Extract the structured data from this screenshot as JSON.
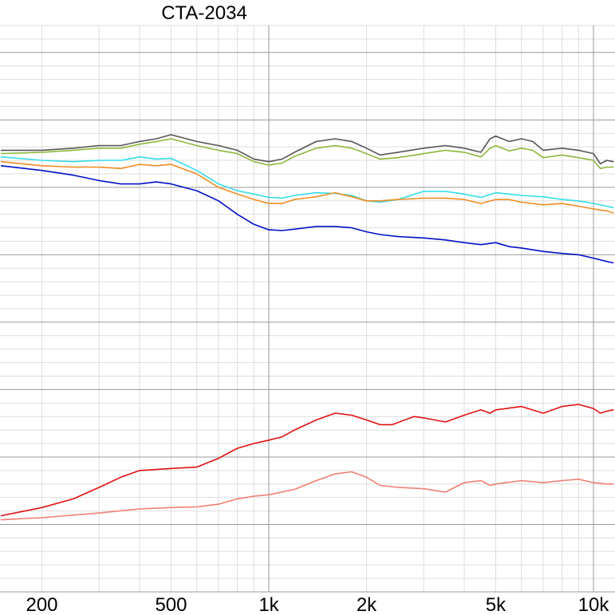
{
  "chart_data": {
    "type": "line",
    "title": "CTA-2034",
    "xlabel": "",
    "ylabel": "",
    "x_scale": "log",
    "xlim": [
      150,
      11500
    ],
    "ylim": [
      0,
      8.4
    ],
    "grid": true,
    "x_tick_labels": [
      {
        "value": 200,
        "label": "200"
      },
      {
        "value": 500,
        "label": "500"
      },
      {
        "value": 1000,
        "label": "1k"
      },
      {
        "value": 2000,
        "label": "2k"
      },
      {
        "value": 5000,
        "label": "5k"
      },
      {
        "value": 10000,
        "label": "10k"
      }
    ],
    "series": [
      {
        "color": "#555555",
        "points": [
          [
            150,
            6.55
          ],
          [
            200,
            6.55
          ],
          [
            250,
            6.58
          ],
          [
            300,
            6.62
          ],
          [
            350,
            6.62
          ],
          [
            400,
            6.68
          ],
          [
            450,
            6.72
          ],
          [
            500,
            6.78
          ],
          [
            600,
            6.68
          ],
          [
            700,
            6.62
          ],
          [
            800,
            6.55
          ],
          [
            900,
            6.42
          ],
          [
            1000,
            6.38
          ],
          [
            1100,
            6.42
          ],
          [
            1200,
            6.52
          ],
          [
            1400,
            6.68
          ],
          [
            1600,
            6.72
          ],
          [
            1800,
            6.68
          ],
          [
            2000,
            6.58
          ],
          [
            2200,
            6.48
          ],
          [
            2500,
            6.52
          ],
          [
            3000,
            6.58
          ],
          [
            3500,
            6.62
          ],
          [
            4000,
            6.58
          ],
          [
            4500,
            6.52
          ],
          [
            4800,
            6.72
          ],
          [
            5000,
            6.76
          ],
          [
            5500,
            6.68
          ],
          [
            6000,
            6.72
          ],
          [
            6500,
            6.68
          ],
          [
            7000,
            6.55
          ],
          [
            8000,
            6.58
          ],
          [
            9000,
            6.55
          ],
          [
            10000,
            6.5
          ],
          [
            10500,
            6.35
          ],
          [
            11000,
            6.4
          ],
          [
            11500,
            6.38
          ]
        ]
      },
      {
        "color": "#8db83a",
        "points": [
          [
            150,
            6.5
          ],
          [
            200,
            6.52
          ],
          [
            250,
            6.55
          ],
          [
            300,
            6.58
          ],
          [
            350,
            6.58
          ],
          [
            400,
            6.64
          ],
          [
            450,
            6.68
          ],
          [
            500,
            6.72
          ],
          [
            600,
            6.62
          ],
          [
            700,
            6.55
          ],
          [
            800,
            6.5
          ],
          [
            900,
            6.38
          ],
          [
            1000,
            6.33
          ],
          [
            1100,
            6.36
          ],
          [
            1200,
            6.46
          ],
          [
            1400,
            6.58
          ],
          [
            1600,
            6.62
          ],
          [
            1800,
            6.58
          ],
          [
            2000,
            6.5
          ],
          [
            2200,
            6.42
          ],
          [
            2500,
            6.44
          ],
          [
            3000,
            6.5
          ],
          [
            3500,
            6.55
          ],
          [
            4000,
            6.52
          ],
          [
            4500,
            6.45
          ],
          [
            4800,
            6.58
          ],
          [
            5000,
            6.62
          ],
          [
            5500,
            6.54
          ],
          [
            6000,
            6.58
          ],
          [
            6500,
            6.55
          ],
          [
            7000,
            6.44
          ],
          [
            8000,
            6.48
          ],
          [
            9000,
            6.44
          ],
          [
            10000,
            6.4
          ],
          [
            10500,
            6.28
          ],
          [
            11000,
            6.3
          ],
          [
            11500,
            6.3
          ]
        ]
      },
      {
        "color": "#33dde8",
        "points": [
          [
            150,
            6.45
          ],
          [
            200,
            6.4
          ],
          [
            250,
            6.38
          ],
          [
            300,
            6.4
          ],
          [
            350,
            6.4
          ],
          [
            400,
            6.45
          ],
          [
            450,
            6.42
          ],
          [
            500,
            6.43
          ],
          [
            600,
            6.25
          ],
          [
            700,
            6.05
          ],
          [
            800,
            5.95
          ],
          [
            900,
            5.9
          ],
          [
            1000,
            5.85
          ],
          [
            1100,
            5.84
          ],
          [
            1200,
            5.88
          ],
          [
            1400,
            5.92
          ],
          [
            1600,
            5.91
          ],
          [
            1800,
            5.88
          ],
          [
            2000,
            5.8
          ],
          [
            2200,
            5.78
          ],
          [
            2500,
            5.82
          ],
          [
            3000,
            5.94
          ],
          [
            3500,
            5.94
          ],
          [
            4000,
            5.9
          ],
          [
            4500,
            5.85
          ],
          [
            5000,
            5.92
          ],
          [
            5500,
            5.9
          ],
          [
            6000,
            5.88
          ],
          [
            7000,
            5.86
          ],
          [
            8000,
            5.82
          ],
          [
            9000,
            5.8
          ],
          [
            10000,
            5.76
          ],
          [
            11000,
            5.72
          ],
          [
            11500,
            5.7
          ]
        ]
      },
      {
        "color": "#f08c22",
        "points": [
          [
            150,
            6.38
          ],
          [
            200,
            6.32
          ],
          [
            250,
            6.3
          ],
          [
            300,
            6.3
          ],
          [
            350,
            6.28
          ],
          [
            400,
            6.34
          ],
          [
            450,
            6.32
          ],
          [
            500,
            6.34
          ],
          [
            600,
            6.2
          ],
          [
            700,
            6.0
          ],
          [
            800,
            5.9
          ],
          [
            900,
            5.82
          ],
          [
            1000,
            5.76
          ],
          [
            1100,
            5.76
          ],
          [
            1200,
            5.82
          ],
          [
            1400,
            5.86
          ],
          [
            1600,
            5.92
          ],
          [
            1800,
            5.86
          ],
          [
            2000,
            5.8
          ],
          [
            2200,
            5.8
          ],
          [
            2500,
            5.82
          ],
          [
            3000,
            5.84
          ],
          [
            3500,
            5.84
          ],
          [
            4000,
            5.82
          ],
          [
            4500,
            5.76
          ],
          [
            5000,
            5.82
          ],
          [
            5500,
            5.82
          ],
          [
            6000,
            5.78
          ],
          [
            7000,
            5.74
          ],
          [
            8000,
            5.76
          ],
          [
            9000,
            5.72
          ],
          [
            10000,
            5.68
          ],
          [
            11000,
            5.65
          ],
          [
            11500,
            5.62
          ]
        ]
      },
      {
        "color": "#0010c8",
        "points": [
          [
            150,
            6.32
          ],
          [
            200,
            6.25
          ],
          [
            250,
            6.18
          ],
          [
            300,
            6.1
          ],
          [
            350,
            6.05
          ],
          [
            400,
            6.05
          ],
          [
            450,
            6.08
          ],
          [
            500,
            6.05
          ],
          [
            600,
            5.95
          ],
          [
            700,
            5.8
          ],
          [
            800,
            5.6
          ],
          [
            900,
            5.45
          ],
          [
            1000,
            5.37
          ],
          [
            1100,
            5.36
          ],
          [
            1200,
            5.38
          ],
          [
            1400,
            5.42
          ],
          [
            1600,
            5.42
          ],
          [
            1800,
            5.4
          ],
          [
            2000,
            5.34
          ],
          [
            2200,
            5.3
          ],
          [
            2500,
            5.27
          ],
          [
            3000,
            5.25
          ],
          [
            3500,
            5.22
          ],
          [
            4000,
            5.18
          ],
          [
            4500,
            5.15
          ],
          [
            5000,
            5.18
          ],
          [
            5500,
            5.12
          ],
          [
            6000,
            5.1
          ],
          [
            7000,
            5.05
          ],
          [
            8000,
            5.02
          ],
          [
            9000,
            5.0
          ],
          [
            10000,
            4.95
          ],
          [
            11000,
            4.9
          ],
          [
            11500,
            4.88
          ]
        ]
      },
      {
        "color": "#e01010",
        "points": [
          [
            150,
            1.13
          ],
          [
            200,
            1.25
          ],
          [
            250,
            1.38
          ],
          [
            300,
            1.55
          ],
          [
            350,
            1.7
          ],
          [
            400,
            1.8
          ],
          [
            500,
            1.83
          ],
          [
            600,
            1.85
          ],
          [
            700,
            1.98
          ],
          [
            800,
            2.13
          ],
          [
            900,
            2.2
          ],
          [
            1000,
            2.25
          ],
          [
            1100,
            2.3
          ],
          [
            1200,
            2.4
          ],
          [
            1400,
            2.55
          ],
          [
            1600,
            2.65
          ],
          [
            1800,
            2.62
          ],
          [
            2000,
            2.55
          ],
          [
            2200,
            2.48
          ],
          [
            2400,
            2.48
          ],
          [
            2800,
            2.6
          ],
          [
            3000,
            2.58
          ],
          [
            3500,
            2.52
          ],
          [
            4000,
            2.62
          ],
          [
            4500,
            2.7
          ],
          [
            4800,
            2.65
          ],
          [
            5000,
            2.7
          ],
          [
            6000,
            2.75
          ],
          [
            7000,
            2.65
          ],
          [
            8000,
            2.75
          ],
          [
            9000,
            2.78
          ],
          [
            10000,
            2.72
          ],
          [
            10500,
            2.65
          ],
          [
            11000,
            2.68
          ],
          [
            11500,
            2.7
          ]
        ]
      },
      {
        "color": "#f07e72",
        "points": [
          [
            150,
            1.07
          ],
          [
            200,
            1.1
          ],
          [
            300,
            1.17
          ],
          [
            400,
            1.23
          ],
          [
            500,
            1.25
          ],
          [
            600,
            1.26
          ],
          [
            700,
            1.3
          ],
          [
            800,
            1.38
          ],
          [
            900,
            1.42
          ],
          [
            1000,
            1.44
          ],
          [
            1200,
            1.52
          ],
          [
            1400,
            1.65
          ],
          [
            1600,
            1.75
          ],
          [
            1800,
            1.78
          ],
          [
            2000,
            1.7
          ],
          [
            2200,
            1.58
          ],
          [
            2500,
            1.55
          ],
          [
            3000,
            1.53
          ],
          [
            3500,
            1.48
          ],
          [
            4000,
            1.62
          ],
          [
            4500,
            1.65
          ],
          [
            4800,
            1.58
          ],
          [
            5000,
            1.6
          ],
          [
            6000,
            1.65
          ],
          [
            7000,
            1.62
          ],
          [
            8000,
            1.65
          ],
          [
            9000,
            1.67
          ],
          [
            10000,
            1.62
          ],
          [
            11000,
            1.6
          ],
          [
            11500,
            1.6
          ]
        ]
      }
    ]
  }
}
